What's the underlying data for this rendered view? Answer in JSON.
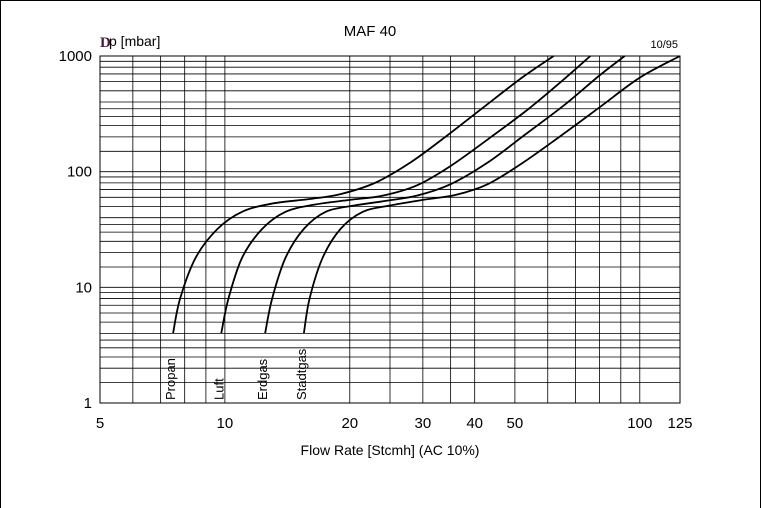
{
  "chart_data": {
    "type": "line",
    "title": "MAF 40",
    "date_code": "10/95",
    "ylabel_symbol": "D",
    "ylabel": "p [mbar]",
    "xlabel": "Flow Rate [Stcmh] (AC 10%)",
    "x_scale": "log",
    "y_scale": "log",
    "xlim": [
      5,
      125
    ],
    "ylim": [
      1,
      1000
    ],
    "x_ticks": [
      5,
      10,
      20,
      30,
      40,
      50,
      100,
      125
    ],
    "x_tick_labels": [
      "5",
      "10",
      "20",
      "30",
      "40",
      "50",
      "100",
      "125"
    ],
    "y_ticks": [
      1,
      10,
      100,
      1000
    ],
    "y_tick_labels": [
      "1",
      "10",
      "100",
      "1000"
    ],
    "grid": true,
    "series": [
      {
        "name": "Propan",
        "x": [
          7.5,
          7.8,
          8.5,
          9.6,
          11,
          13,
          16,
          19,
          23,
          28,
          34,
          42,
          52,
          62
        ],
        "y": [
          4,
          8,
          18,
          32,
          45,
          53,
          58,
          64,
          80,
          120,
          200,
          360,
          650,
          1000
        ]
      },
      {
        "name": "Luft",
        "x": [
          9.8,
          10.2,
          11,
          12.3,
          14,
          16.5,
          20,
          24,
          29,
          35,
          43,
          54,
          66,
          76
        ],
        "y": [
          4,
          8,
          18,
          32,
          45,
          52,
          57,
          62,
          76,
          112,
          190,
          350,
          640,
          1000
        ]
      },
      {
        "name": "Erdgas",
        "x": [
          12.5,
          13,
          14,
          15.5,
          17.5,
          20.5,
          24.5,
          29,
          35,
          43,
          53,
          66,
          80,
          92
        ],
        "y": [
          4,
          8,
          18,
          32,
          45,
          51,
          56,
          62,
          78,
          120,
          210,
          380,
          680,
          1000
        ]
      },
      {
        "name": "Stadtgas",
        "x": [
          15.5,
          16,
          17.2,
          19,
          21.5,
          25,
          30,
          36,
          43,
          52,
          64,
          80,
          100,
          125
        ],
        "y": [
          4,
          8,
          18,
          32,
          45,
          51,
          57,
          63,
          78,
          118,
          200,
          360,
          650,
          1000
        ]
      }
    ]
  }
}
